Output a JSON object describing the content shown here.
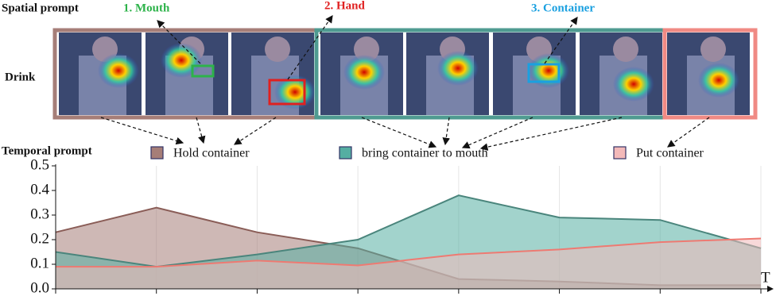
{
  "figure": {
    "spatial_prompt": "Spatial prompt",
    "action": "Drink",
    "prompts": [
      "1. Mouth",
      "2. Hand",
      "3. Container"
    ],
    "temporal_prompt": "Temporal prompt"
  },
  "chart_data": {
    "type": "area",
    "categories": [
      null,
      null,
      null,
      null,
      null,
      null,
      null,
      null
    ],
    "series": [
      {
        "name": "Hold container",
        "color": "#a67e78",
        "line": "#8a5d57",
        "values": [
          0.23,
          0.33,
          0.23,
          0.165,
          0.04,
          0.03,
          0.015,
          0.015
        ]
      },
      {
        "name": "bring container to mouth",
        "color": "#55aea2",
        "line": "#4a857c",
        "values": [
          0.15,
          0.09,
          0.14,
          0.2,
          0.38,
          0.29,
          0.28,
          0.165
        ]
      },
      {
        "name": "Put container",
        "color": "#f3b9b9",
        "line": "#ee7a72",
        "values": [
          0.09,
          0.09,
          0.115,
          0.095,
          0.14,
          0.16,
          0.19,
          0.205
        ]
      }
    ],
    "ylim": [
      0,
      0.5
    ],
    "yticks": [
      {
        "value": 0,
        "label": "0.0"
      },
      0.1,
      0.2,
      0.3,
      0.4,
      0.5
    ],
    "x_label": "T",
    "grid": true
  }
}
